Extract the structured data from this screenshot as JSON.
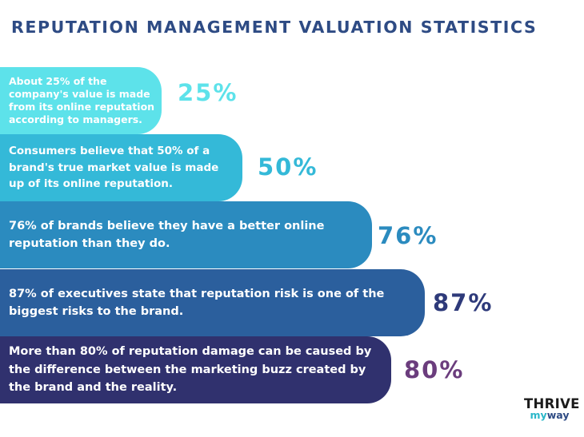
{
  "title": "REPUTATION MANAGEMENT VALUATION STATISTICS",
  "chart_data": {
    "type": "bar",
    "orientation": "horizontal",
    "categories": [
      "About 25% of the company's value is made from its online reputation according to managers.",
      "Consumers believe that 50% of a brand's true market value is made up of its online reputation.",
      "76% of brands believe they have a better online reputation than they do.",
      "87% of executives state that reputation risk is one of the biggest risks to the brand.",
      "More than 80% of reputation damage can be caused by the difference between the marketing buzz created by the brand and the reality."
    ],
    "values": [
      25,
      50,
      76,
      87,
      80
    ],
    "value_labels": [
      "25%",
      "50%",
      "76%",
      "87%",
      "80%"
    ],
    "bar_colors": [
      "#5de2ea",
      "#34b9d8",
      "#2b8bbf",
      "#2b5f9d",
      "#30316e"
    ],
    "label_colors": [
      "#5de2ea",
      "#34b9d8",
      "#2b8bbf",
      "#2e3a7a",
      "#6b3d7d"
    ]
  },
  "logo": {
    "top": "THRIVE",
    "bottom_a": "my",
    "bottom_b": "way"
  }
}
